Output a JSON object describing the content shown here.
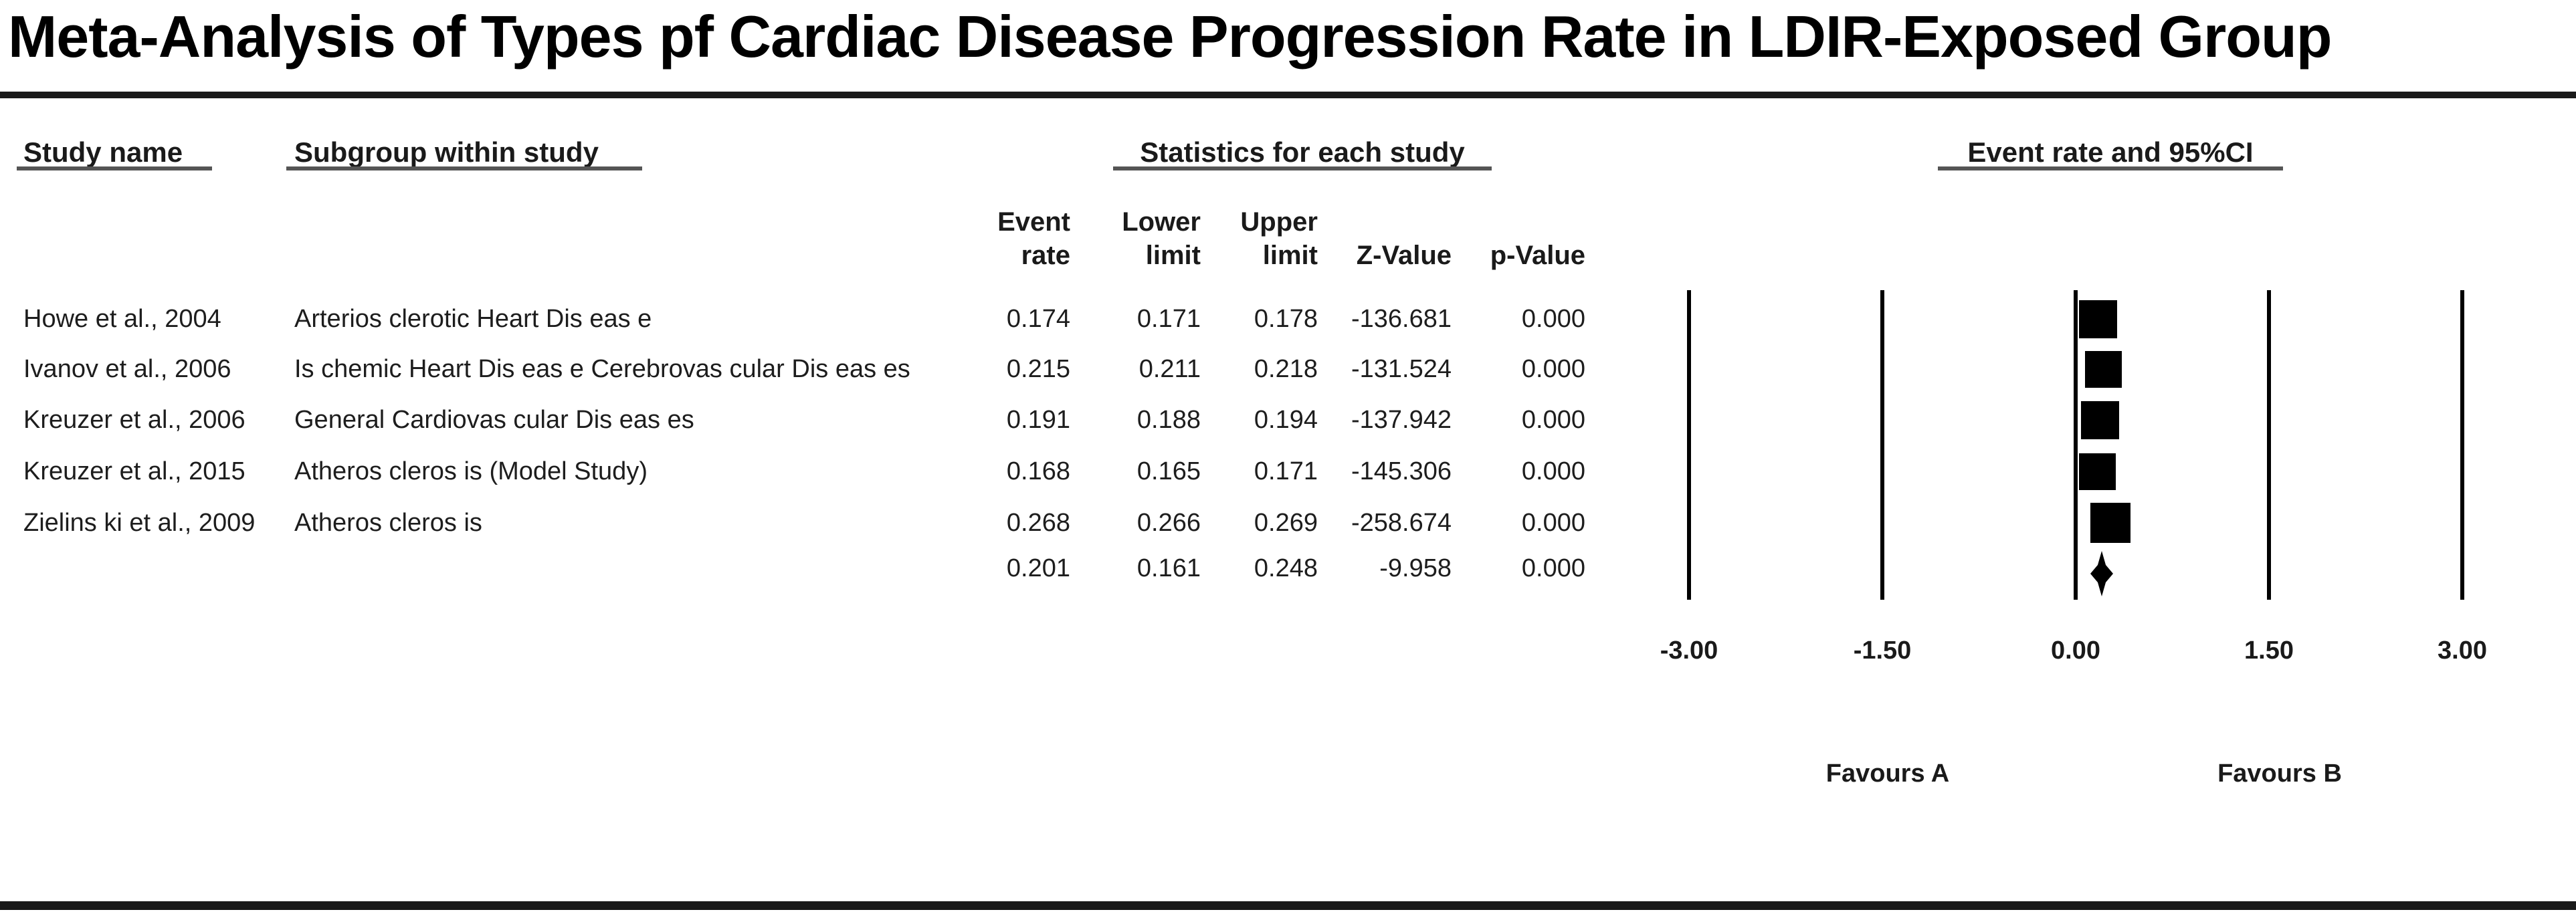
{
  "title": "Meta-Analysis of Types pf Cardiac Disease Progression Rate in LDIR-Exposed Group",
  "columns": {
    "study": "Study name",
    "subgroup": "Subgroup within study",
    "stats_group": "Statistics for each study",
    "plot_group": "Event rate and 95%CI",
    "stat_col_line1": [
      "Event",
      "Lower",
      "Upper"
    ],
    "stat_col_line2": [
      "rate",
      "limit",
      "limit",
      "Z-Value",
      "p-Value"
    ]
  },
  "rows": [
    {
      "study": "Howe et al., 2004",
      "subgroup": "Arterios clerotic Heart Dis eas e",
      "event_rate": "0.174",
      "lower_limit": "0.171",
      "upper_limit": "0.178",
      "z_value": "-136.681",
      "p_value": "0.000",
      "marker": "square"
    },
    {
      "study": "Ivanov et al., 2006",
      "subgroup": "Is chemic Heart Dis eas e Cerebrovas cular Dis eas es",
      "event_rate": "0.215",
      "lower_limit": "0.211",
      "upper_limit": "0.218",
      "z_value": "-131.524",
      "p_value": "0.000",
      "marker": "square"
    },
    {
      "study": "Kreuzer et al., 2006",
      "subgroup": "General Cardiovas cular Dis eas es",
      "event_rate": "0.191",
      "lower_limit": "0.188",
      "upper_limit": "0.194",
      "z_value": "-137.942",
      "p_value": "0.000",
      "marker": "square"
    },
    {
      "study": "Kreuzer et al., 2015",
      "subgroup": "Atheros cleros is  (Model Study)",
      "event_rate": "0.168",
      "lower_limit": "0.165",
      "upper_limit": "0.171",
      "z_value": "-145.306",
      "p_value": "0.000",
      "marker": "square"
    },
    {
      "study": "Zielins ki et al., 2009",
      "subgroup": "Atheros cleros is",
      "event_rate": "0.268",
      "lower_limit": "0.266",
      "upper_limit": "0.269",
      "z_value": "-258.674",
      "p_value": "0.000",
      "marker": "square"
    },
    {
      "study": "",
      "subgroup": "",
      "event_rate": "0.201",
      "lower_limit": "0.161",
      "upper_limit": "0.248",
      "z_value": "-9.958",
      "p_value": "0.000",
      "marker": "diamond"
    }
  ],
  "axis": {
    "ticks": [
      "-3.00",
      "-1.50",
      "0.00",
      "1.50",
      "3.00"
    ],
    "favours_left": "Favours A",
    "favours_right": "Favours B"
  },
  "chart_data": {
    "type": "scatter",
    "variant": "forest-plot",
    "title": "Meta-Analysis of Types pf Cardiac Disease Progression Rate in LDIR-Exposed Group",
    "effect_measure": "Event rate and 95%CI",
    "x_axis": {
      "ticks": [
        -3.0,
        -1.5,
        0.0,
        1.5,
        3.0
      ],
      "range": [
        -3.0,
        3.0
      ],
      "left_label": "Favours A",
      "right_label": "Favours B",
      "gridlines": true
    },
    "studies": [
      {
        "study": "Howe et al., 2004",
        "subgroup": "Arteriosclerotic Heart Disease",
        "event_rate": 0.174,
        "lower_limit": 0.171,
        "upper_limit": 0.178,
        "z_value": -136.681,
        "p_value": 0.0
      },
      {
        "study": "Ivanov et al., 2006",
        "subgroup": "Ischemic Heart Disease Cerebrovascular Diseases",
        "event_rate": 0.215,
        "lower_limit": 0.211,
        "upper_limit": 0.218,
        "z_value": -131.524,
        "p_value": 0.0
      },
      {
        "study": "Kreuzer et al., 2006",
        "subgroup": "General Cardiovascular Diseases",
        "event_rate": 0.191,
        "lower_limit": 0.188,
        "upper_limit": 0.194,
        "z_value": -137.942,
        "p_value": 0.0
      },
      {
        "study": "Kreuzer et al., 2015",
        "subgroup": "Atherosclerosis (Model Study)",
        "event_rate": 0.168,
        "lower_limit": 0.165,
        "upper_limit": 0.171,
        "z_value": -145.306,
        "p_value": 0.0
      },
      {
        "study": "Zielinski et al., 2009",
        "subgroup": "Atherosclerosis",
        "event_rate": 0.268,
        "lower_limit": 0.266,
        "upper_limit": 0.269,
        "z_value": -258.674,
        "p_value": 0.0
      }
    ],
    "summary": {
      "event_rate": 0.201,
      "lower_limit": 0.161,
      "upper_limit": 0.248,
      "z_value": -9.958,
      "p_value": 0.0,
      "marker": "diamond"
    }
  }
}
